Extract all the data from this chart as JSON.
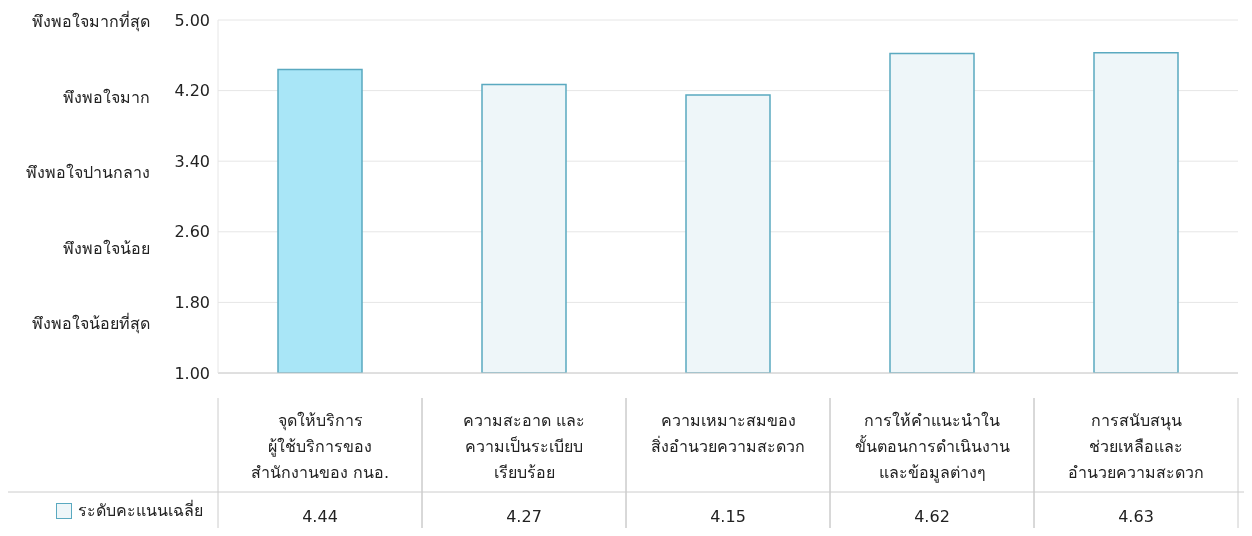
{
  "chart_data": {
    "type": "bar",
    "categories": [
      "จุดให้บริการ\nผู้ใช้บริการของ\nสำนักงานของ กนอ.",
      "ความสะอาด และ\nความเป็นระเบียบ\nเรียบร้อย",
      "ความเหมาะสมของ\nสิ่งอำนวยความสะดวก",
      "การให้คำแนะนำใน\nขั้นตอนการดำเนินงาน\nและข้อมูลต่างๆ",
      "การสนับสนุน\nช่วยเหลือและ\nอำนวยความสะดวก"
    ],
    "series": [
      {
        "name": "ระดับคะแนนเฉลี่ย",
        "color": "#eef6f9",
        "colors": [
          "#a9e6f7",
          "#eef6f9",
          "#eef6f9",
          "#eef6f9",
          "#eef6f9"
        ],
        "values": [
          4.44,
          4.27,
          4.15,
          4.62,
          4.63
        ]
      }
    ],
    "ylim": [
      1,
      5
    ],
    "yticks": [
      {
        "value": 1,
        "label": "1.00"
      },
      {
        "value": 1.8,
        "label": "1.80"
      },
      {
        "value": 2.6,
        "label": "2.60"
      },
      {
        "value": 3.4,
        "label": "3.40"
      },
      {
        "value": 4.2,
        "label": "4.20"
      },
      {
        "value": 5,
        "label": "5.00"
      }
    ],
    "annotations": [
      "พึงพอใจน้อยที่สุด",
      "พึงพอใจน้อย",
      "พึงพอใจปานกลาง",
      "พึงพอใจมาก",
      "พึงพอใจมากที่สุด"
    ],
    "grid": "y",
    "legend": "bottom",
    "data_labels": true
  }
}
